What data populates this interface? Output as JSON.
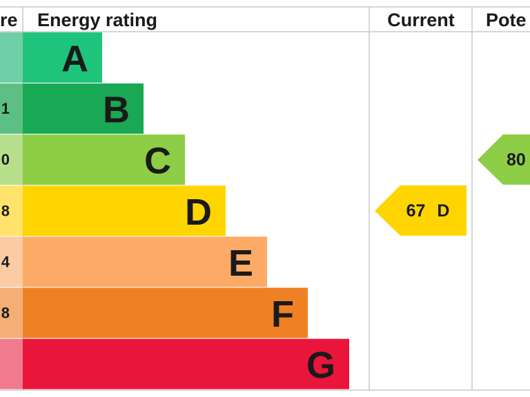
{
  "header": {
    "score": "re",
    "rating": "Energy rating",
    "current": "Current",
    "potential": "Pote"
  },
  "rows": [
    {
      "score": null,
      "rating": "A"
    },
    {
      "score": "1",
      "rating": "B"
    },
    {
      "score": "0",
      "rating": "C"
    },
    {
      "score": "8",
      "rating": "D"
    },
    {
      "score": "4",
      "rating": "E"
    },
    {
      "score": "8",
      "rating": "F"
    },
    {
      "score": null,
      "rating": "G"
    }
  ],
  "current": "67 D",
  "potential": "80"
}
